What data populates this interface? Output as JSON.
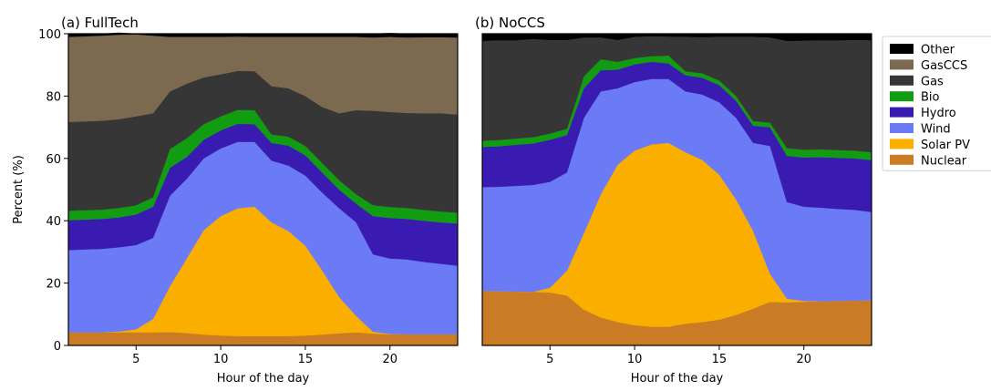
{
  "figure": {
    "ylabel": "Percent (%)",
    "xlabel": "Hour of the day"
  },
  "legend": {
    "placement": "right-outside",
    "items": [
      {
        "name": "Other",
        "color": "#000000"
      },
      {
        "name": "GasCCS",
        "color": "#7b6a4f"
      },
      {
        "name": "Gas",
        "color": "#363636"
      },
      {
        "name": "Bio",
        "color": "#119c11"
      },
      {
        "name": "Hydro",
        "color": "#3a1bb2"
      },
      {
        "name": "Wind",
        "color": "#6b7af5"
      },
      {
        "name": "Solar PV",
        "color": "#f9ae00"
      },
      {
        "name": "Nuclear",
        "color": "#c97b26"
      }
    ]
  },
  "chart_data": [
    {
      "type": "area",
      "title": "(a) FullTech",
      "xlabel": "Hour of the day",
      "ylabel": "Percent (%)",
      "xlim": [
        1,
        24
      ],
      "ylim": [
        0,
        100
      ],
      "xticks": [
        5,
        10,
        15,
        20
      ],
      "yticks": [
        0,
        20,
        40,
        60,
        80,
        100
      ],
      "stacked": true,
      "x": [
        1,
        2,
        3,
        4,
        5,
        6,
        7,
        8,
        9,
        10,
        11,
        12,
        13,
        14,
        15,
        16,
        17,
        18,
        19,
        20,
        21,
        22,
        23,
        24
      ],
      "series": [
        {
          "name": "Nuclear",
          "values": [
            4.2,
            4.2,
            4.2,
            4.2,
            4.2,
            4.2,
            4.3,
            4.0,
            3.5,
            3.2,
            3.0,
            3.0,
            3.0,
            3.0,
            3.2,
            3.5,
            3.9,
            4.2,
            3.8,
            3.6,
            3.6,
            3.6,
            3.6,
            3.6
          ]
        },
        {
          "name": "Solar PV",
          "values": [
            0,
            0,
            0,
            0.3,
            1.0,
            4.3,
            14.7,
            24.0,
            33.5,
            38.3,
            41.0,
            41.5,
            36.5,
            33.7,
            28.8,
            20.5,
            11.6,
            5.3,
            0.6,
            0.1,
            0,
            0,
            0,
            0
          ]
        },
        {
          "name": "Wind",
          "values": [
            26.4,
            26.6,
            26.8,
            27.0,
            27.0,
            26.0,
            29.0,
            25.5,
            23.0,
            21.7,
            21.3,
            20.8,
            19.8,
            21.0,
            22.5,
            25.0,
            28.5,
            30.0,
            24.8,
            24.2,
            24.0,
            23.2,
            22.6,
            22.0
          ]
        },
        {
          "name": "Hydro",
          "values": [
            9.6,
            9.6,
            9.6,
            9.6,
            9.8,
            10.0,
            9.0,
            7.0,
            6.0,
            5.8,
            5.8,
            5.7,
            5.7,
            6.4,
            6.5,
            6.5,
            6.0,
            6.0,
            12.3,
            13.0,
            13.0,
            13.2,
            13.3,
            13.5
          ]
        },
        {
          "name": "Bio",
          "values": [
            3.0,
            3.0,
            3.0,
            3.0,
            3.0,
            3.0,
            6.0,
            6.0,
            5.0,
            4.5,
            4.5,
            4.5,
            2.7,
            2.9,
            3.0,
            3.0,
            3.0,
            3.0,
            3.5,
            3.5,
            3.5,
            3.5,
            3.5,
            3.5
          ]
        },
        {
          "name": "Gas",
          "values": [
            28.5,
            28.5,
            28.5,
            28.5,
            28.5,
            27.0,
            18.5,
            17.5,
            15.0,
            13.5,
            12.5,
            12.5,
            15.5,
            15.5,
            16.0,
            18.0,
            21.5,
            27.0,
            30.3,
            30.5,
            30.5,
            31.0,
            31.5,
            31.5
          ]
        },
        {
          "name": "GasCCS",
          "values": [
            27.3,
            27.3,
            27.3,
            27.1,
            26.3,
            24.9,
            17.5,
            15.0,
            13.0,
            12.0,
            11.0,
            11.0,
            15.8,
            16.5,
            19.0,
            22.5,
            24.5,
            23.5,
            23.5,
            24.1,
            24.2,
            24.4,
            24.4,
            24.7
          ]
        },
        {
          "name": "Other",
          "values": [
            1.0,
            0.8,
            0.6,
            0.6,
            0.2,
            0.6,
            1.0,
            1.0,
            1.0,
            1.0,
            0.9,
            1.0,
            1.0,
            1.0,
            1.0,
            1.0,
            1.0,
            1.0,
            1.2,
            1.2,
            1.2,
            1.1,
            1.1,
            1.2
          ]
        }
      ]
    },
    {
      "type": "area",
      "title": "(b) NoCCS",
      "xlabel": "Hour of the day",
      "xlim": [
        1,
        24
      ],
      "ylim": [
        0,
        100
      ],
      "xticks": [
        5,
        10,
        15,
        20
      ],
      "stacked": true,
      "x": [
        1,
        2,
        3,
        4,
        5,
        6,
        7,
        8,
        9,
        10,
        11,
        12,
        13,
        14,
        15,
        16,
        17,
        18,
        19,
        20,
        21,
        22,
        23,
        24
      ],
      "series": [
        {
          "name": "Nuclear",
          "values": [
            17.5,
            17.4,
            17.3,
            17.2,
            17.0,
            16.0,
            11.5,
            9.0,
            7.5,
            6.5,
            6.0,
            6.0,
            7.0,
            7.5,
            8.3,
            9.8,
            11.8,
            14.0,
            13.8,
            14.0,
            14.2,
            14.3,
            14.4,
            14.5
          ]
        },
        {
          "name": "Solar PV",
          "values": [
            0,
            0,
            0,
            0,
            1.5,
            8.0,
            24.5,
            39.5,
            50.5,
            56.0,
            58.5,
            59.0,
            55.0,
            52.0,
            46.5,
            37.0,
            25.0,
            9.0,
            1.2,
            0.3,
            0,
            0,
            0,
            0
          ]
        },
        {
          "name": "Wind",
          "values": [
            33.3,
            33.5,
            33.9,
            34.3,
            34.0,
            31.5,
            37.0,
            33.0,
            24.5,
            22.0,
            21.0,
            20.5,
            19.5,
            21.0,
            23.2,
            26.2,
            28.2,
            41.0,
            31.0,
            30.2,
            30.0,
            29.5,
            29.1,
            28.3
          ]
        },
        {
          "name": "Hydro",
          "values": [
            12.9,
            13.0,
            13.2,
            13.3,
            13.5,
            12.0,
            9.5,
            6.8,
            6.0,
            5.7,
            5.5,
            5.0,
            5.2,
            5.4,
            5.5,
            5.5,
            5.5,
            6.0,
            14.8,
            15.8,
            16.2,
            16.4,
            16.5,
            16.7
          ]
        },
        {
          "name": "Bio",
          "values": [
            2.0,
            2.0,
            2.0,
            2.0,
            2.0,
            2.0,
            3.8,
            3.5,
            2.5,
            2.0,
            1.8,
            2.5,
            1.3,
            1.4,
            1.5,
            1.5,
            1.5,
            1.5,
            2.5,
            2.5,
            2.5,
            2.5,
            2.5,
            2.5
          ]
        },
        {
          "name": "Gas",
          "values": [
            32.0,
            32.0,
            31.5,
            31.5,
            30.0,
            28.5,
            12.5,
            7.0,
            7.0,
            6.8,
            6.4,
            6.1,
            11.0,
            11.6,
            14.0,
            19.0,
            27.0,
            27.3,
            34.4,
            35.0,
            35.0,
            35.2,
            35.5,
            35.9
          ]
        },
        {
          "name": "GasCCS",
          "values": [
            0,
            0,
            0,
            0,
            0,
            0,
            0,
            0,
            0,
            0,
            0,
            0,
            0,
            0,
            0,
            0,
            0,
            0,
            0,
            0,
            0,
            0,
            0,
            0
          ]
        },
        {
          "name": "Other",
          "values": [
            2.3,
            2.1,
            2.1,
            1.7,
            2.0,
            2.0,
            1.2,
            1.2,
            2.0,
            1.0,
            0.8,
            0.9,
            1.0,
            1.1,
            1.0,
            1.0,
            1.0,
            1.2,
            2.3,
            2.2,
            2.1,
            2.1,
            2.0,
            2.1
          ]
        }
      ]
    }
  ]
}
